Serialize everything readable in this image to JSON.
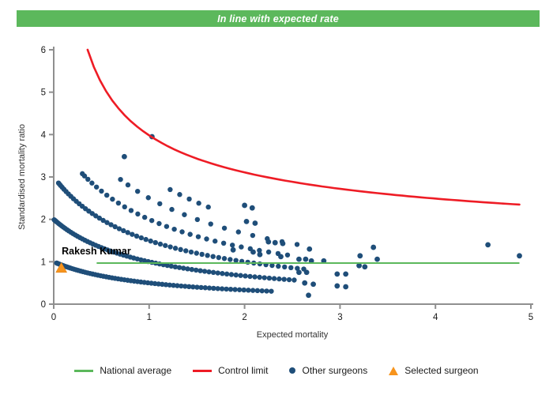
{
  "banner": {
    "text": "In line with expected rate",
    "color": "#5CB85C"
  },
  "legend": {
    "items": [
      {
        "label": "National average",
        "marker": "green-line",
        "color": "#5CB85C"
      },
      {
        "label": "Control limit",
        "marker": "red-line",
        "color": "#EE1C25"
      },
      {
        "label": "Other surgeons",
        "marker": "navy-dot",
        "color": "#1F4E79"
      },
      {
        "label": "Selected surgeon",
        "marker": "orange-triangle",
        "color": "#F7941D"
      }
    ]
  },
  "chart_data": {
    "type": "scatter",
    "title": "",
    "xlabel": "Expected mortality",
    "ylabel": "Standardised mortality ratio",
    "xlim": [
      0,
      5
    ],
    "ylim": [
      0,
      6
    ],
    "x_ticks": [
      0,
      1,
      2,
      3,
      4,
      5
    ],
    "y_ticks": [
      0,
      1,
      2,
      3,
      4,
      5,
      6
    ],
    "grid": false,
    "axis_color": "#8F8F8F",
    "national_average": {
      "y": 0.97,
      "x_start": 0.45,
      "x_end": 4.88,
      "color": "#5CB85C"
    },
    "control_limit": {
      "formula": "y = 1 + 2.98/sqrt(x)",
      "base": 1,
      "coef": 2.98,
      "x_start": 0.355,
      "x_end": 4.88,
      "color": "#EE1C25"
    },
    "other_surgeons": {
      "color": "#1F4E79",
      "dot_radius": 3.2,
      "arc_formula": "y = deaths / (x + 1)",
      "arcs": [
        {
          "deaths": 1,
          "x_start": 0.03,
          "x_end": 2.28,
          "n": 70,
          "spread": 1.5
        },
        {
          "deaths": 2,
          "x_start": 0.005,
          "x_end": 2.52,
          "n": 72,
          "spread": 1.5
        },
        {
          "deaths": 3,
          "x_start": 0.05,
          "x_end": 2.62,
          "n": 56,
          "spread": 1.45
        },
        {
          "deaths": 4,
          "x_start": 0.3,
          "x_end": 2.45,
          "n": 30,
          "spread": 1.35
        },
        {
          "deaths": 5,
          "x_start": 0.7,
          "x_end": 2.55,
          "n": 15,
          "spread": 1.2
        },
        {
          "deaths": 6,
          "x_start": 1.22,
          "x_end": 1.62,
          "n": 5,
          "spread": 1.0
        }
      ],
      "scatter_points": [
        [
          1.03,
          3.95
        ],
        [
          0.74,
          3.48
        ],
        [
          2.0,
          2.33
        ],
        [
          2.08,
          2.27
        ],
        [
          2.02,
          1.95
        ],
        [
          2.11,
          1.91
        ],
        [
          2.25,
          1.47
        ],
        [
          2.32,
          1.45
        ],
        [
          2.4,
          1.43
        ],
        [
          1.88,
          1.28
        ],
        [
          2.09,
          1.23
        ],
        [
          2.16,
          1.17
        ],
        [
          2.38,
          1.12
        ],
        [
          2.57,
          1.06
        ],
        [
          2.64,
          1.06
        ],
        [
          2.7,
          1.02
        ],
        [
          2.83,
          1.02
        ],
        [
          2.68,
          1.3
        ],
        [
          2.57,
          0.75
        ],
        [
          2.65,
          0.75
        ],
        [
          2.63,
          0.5
        ],
        [
          2.72,
          0.47
        ],
        [
          2.67,
          0.21
        ],
        [
          2.97,
          0.71
        ],
        [
          3.06,
          0.71
        ],
        [
          2.97,
          0.43
        ],
        [
          3.06,
          0.41
        ],
        [
          3.21,
          1.14
        ],
        [
          3.35,
          1.34
        ],
        [
          3.39,
          1.06
        ],
        [
          3.2,
          0.91
        ],
        [
          3.26,
          0.88
        ],
        [
          4.55,
          1.4
        ],
        [
          4.88,
          1.14
        ]
      ]
    },
    "selected_surgeon": {
      "name": "Rakesh Kumar",
      "x": 0.08,
      "y": 0.86,
      "color": "#F7941D"
    }
  }
}
